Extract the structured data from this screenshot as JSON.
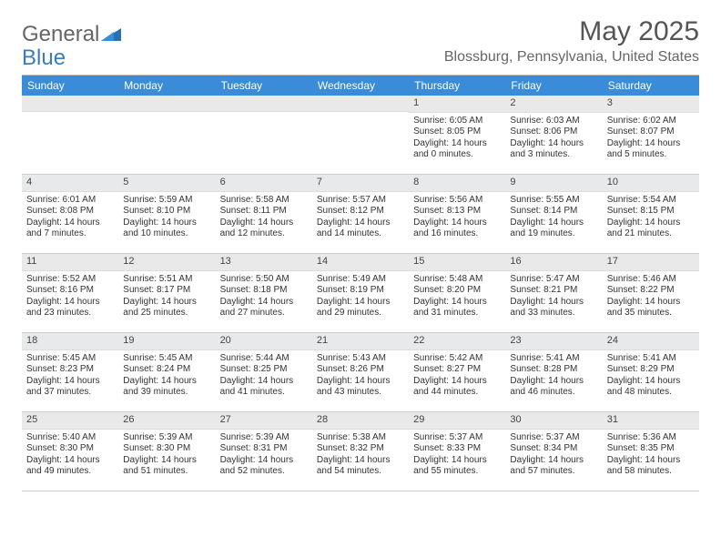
{
  "logo": {
    "text1": "General",
    "text2": "Blue"
  },
  "title": "May 2025",
  "location": "Blossburg, Pennsylvania, United States",
  "colors": {
    "header_bg": "#3a8bd8",
    "header_text": "#ffffff",
    "daynum_bg": "#e8e9ea",
    "border": "#cccccc",
    "text": "#333333",
    "title_text": "#555555",
    "logo_blue": "#3a7cbf"
  },
  "day_headers": [
    "Sunday",
    "Monday",
    "Tuesday",
    "Wednesday",
    "Thursday",
    "Friday",
    "Saturday"
  ],
  "weeks": [
    [
      {
        "num": "",
        "sunrise": "",
        "sunset": "",
        "daylight": ""
      },
      {
        "num": "",
        "sunrise": "",
        "sunset": "",
        "daylight": ""
      },
      {
        "num": "",
        "sunrise": "",
        "sunset": "",
        "daylight": ""
      },
      {
        "num": "",
        "sunrise": "",
        "sunset": "",
        "daylight": ""
      },
      {
        "num": "1",
        "sunrise": "Sunrise: 6:05 AM",
        "sunset": "Sunset: 8:05 PM",
        "daylight": "Daylight: 14 hours and 0 minutes."
      },
      {
        "num": "2",
        "sunrise": "Sunrise: 6:03 AM",
        "sunset": "Sunset: 8:06 PM",
        "daylight": "Daylight: 14 hours and 3 minutes."
      },
      {
        "num": "3",
        "sunrise": "Sunrise: 6:02 AM",
        "sunset": "Sunset: 8:07 PM",
        "daylight": "Daylight: 14 hours and 5 minutes."
      }
    ],
    [
      {
        "num": "4",
        "sunrise": "Sunrise: 6:01 AM",
        "sunset": "Sunset: 8:08 PM",
        "daylight": "Daylight: 14 hours and 7 minutes."
      },
      {
        "num": "5",
        "sunrise": "Sunrise: 5:59 AM",
        "sunset": "Sunset: 8:10 PM",
        "daylight": "Daylight: 14 hours and 10 minutes."
      },
      {
        "num": "6",
        "sunrise": "Sunrise: 5:58 AM",
        "sunset": "Sunset: 8:11 PM",
        "daylight": "Daylight: 14 hours and 12 minutes."
      },
      {
        "num": "7",
        "sunrise": "Sunrise: 5:57 AM",
        "sunset": "Sunset: 8:12 PM",
        "daylight": "Daylight: 14 hours and 14 minutes."
      },
      {
        "num": "8",
        "sunrise": "Sunrise: 5:56 AM",
        "sunset": "Sunset: 8:13 PM",
        "daylight": "Daylight: 14 hours and 16 minutes."
      },
      {
        "num": "9",
        "sunrise": "Sunrise: 5:55 AM",
        "sunset": "Sunset: 8:14 PM",
        "daylight": "Daylight: 14 hours and 19 minutes."
      },
      {
        "num": "10",
        "sunrise": "Sunrise: 5:54 AM",
        "sunset": "Sunset: 8:15 PM",
        "daylight": "Daylight: 14 hours and 21 minutes."
      }
    ],
    [
      {
        "num": "11",
        "sunrise": "Sunrise: 5:52 AM",
        "sunset": "Sunset: 8:16 PM",
        "daylight": "Daylight: 14 hours and 23 minutes."
      },
      {
        "num": "12",
        "sunrise": "Sunrise: 5:51 AM",
        "sunset": "Sunset: 8:17 PM",
        "daylight": "Daylight: 14 hours and 25 minutes."
      },
      {
        "num": "13",
        "sunrise": "Sunrise: 5:50 AM",
        "sunset": "Sunset: 8:18 PM",
        "daylight": "Daylight: 14 hours and 27 minutes."
      },
      {
        "num": "14",
        "sunrise": "Sunrise: 5:49 AM",
        "sunset": "Sunset: 8:19 PM",
        "daylight": "Daylight: 14 hours and 29 minutes."
      },
      {
        "num": "15",
        "sunrise": "Sunrise: 5:48 AM",
        "sunset": "Sunset: 8:20 PM",
        "daylight": "Daylight: 14 hours and 31 minutes."
      },
      {
        "num": "16",
        "sunrise": "Sunrise: 5:47 AM",
        "sunset": "Sunset: 8:21 PM",
        "daylight": "Daylight: 14 hours and 33 minutes."
      },
      {
        "num": "17",
        "sunrise": "Sunrise: 5:46 AM",
        "sunset": "Sunset: 8:22 PM",
        "daylight": "Daylight: 14 hours and 35 minutes."
      }
    ],
    [
      {
        "num": "18",
        "sunrise": "Sunrise: 5:45 AM",
        "sunset": "Sunset: 8:23 PM",
        "daylight": "Daylight: 14 hours and 37 minutes."
      },
      {
        "num": "19",
        "sunrise": "Sunrise: 5:45 AM",
        "sunset": "Sunset: 8:24 PM",
        "daylight": "Daylight: 14 hours and 39 minutes."
      },
      {
        "num": "20",
        "sunrise": "Sunrise: 5:44 AM",
        "sunset": "Sunset: 8:25 PM",
        "daylight": "Daylight: 14 hours and 41 minutes."
      },
      {
        "num": "21",
        "sunrise": "Sunrise: 5:43 AM",
        "sunset": "Sunset: 8:26 PM",
        "daylight": "Daylight: 14 hours and 43 minutes."
      },
      {
        "num": "22",
        "sunrise": "Sunrise: 5:42 AM",
        "sunset": "Sunset: 8:27 PM",
        "daylight": "Daylight: 14 hours and 44 minutes."
      },
      {
        "num": "23",
        "sunrise": "Sunrise: 5:41 AM",
        "sunset": "Sunset: 8:28 PM",
        "daylight": "Daylight: 14 hours and 46 minutes."
      },
      {
        "num": "24",
        "sunrise": "Sunrise: 5:41 AM",
        "sunset": "Sunset: 8:29 PM",
        "daylight": "Daylight: 14 hours and 48 minutes."
      }
    ],
    [
      {
        "num": "25",
        "sunrise": "Sunrise: 5:40 AM",
        "sunset": "Sunset: 8:30 PM",
        "daylight": "Daylight: 14 hours and 49 minutes."
      },
      {
        "num": "26",
        "sunrise": "Sunrise: 5:39 AM",
        "sunset": "Sunset: 8:30 PM",
        "daylight": "Daylight: 14 hours and 51 minutes."
      },
      {
        "num": "27",
        "sunrise": "Sunrise: 5:39 AM",
        "sunset": "Sunset: 8:31 PM",
        "daylight": "Daylight: 14 hours and 52 minutes."
      },
      {
        "num": "28",
        "sunrise": "Sunrise: 5:38 AM",
        "sunset": "Sunset: 8:32 PM",
        "daylight": "Daylight: 14 hours and 54 minutes."
      },
      {
        "num": "29",
        "sunrise": "Sunrise: 5:37 AM",
        "sunset": "Sunset: 8:33 PM",
        "daylight": "Daylight: 14 hours and 55 minutes."
      },
      {
        "num": "30",
        "sunrise": "Sunrise: 5:37 AM",
        "sunset": "Sunset: 8:34 PM",
        "daylight": "Daylight: 14 hours and 57 minutes."
      },
      {
        "num": "31",
        "sunrise": "Sunrise: 5:36 AM",
        "sunset": "Sunset: 8:35 PM",
        "daylight": "Daylight: 14 hours and 58 minutes."
      }
    ]
  ]
}
